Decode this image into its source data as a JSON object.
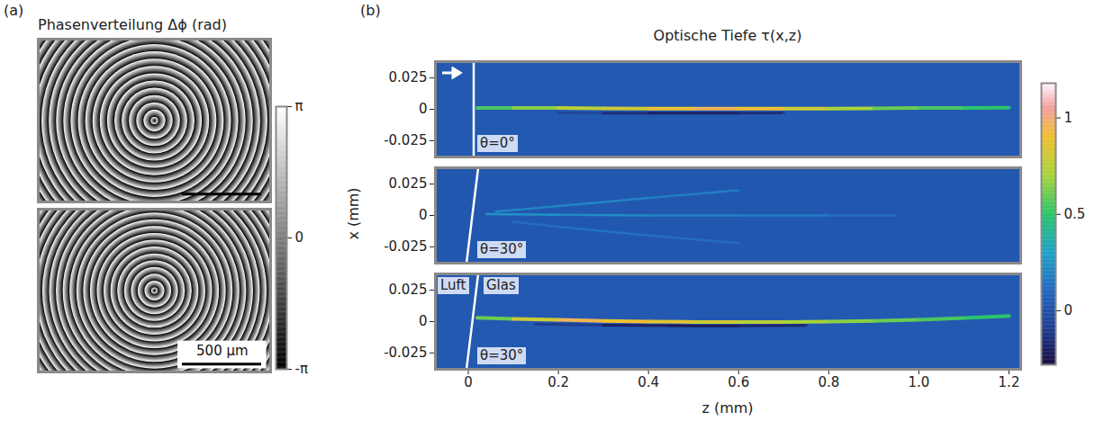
{
  "panel_labels": [
    "(a)",
    "(b)"
  ],
  "panel_a": {
    "title": "Phasenverteilung Δϕ (rad)",
    "width_um": 1466,
    "height_um": 1028,
    "images": [
      {
        "wrap_radii_um": [
          23,
          69,
          115,
          161,
          207,
          253,
          299,
          345,
          391,
          437,
          483,
          529,
          575,
          621,
          667,
          713,
          759,
          805,
          851,
          897,
          943
        ],
        "scale_bar": {
          "length_um": 500
        }
      },
      {
        "wrap_radii_um": [
          20,
          63,
          106,
          149,
          192,
          235,
          278,
          321,
          364,
          407,
          450,
          493,
          536,
          579,
          622,
          665,
          708,
          751,
          794,
          837,
          880,
          923
        ],
        "scale_bar": {
          "length_um": 500,
          "label": "500 µm"
        }
      }
    ],
    "colorbar": {
      "range": [
        -3.14159,
        3.14159
      ],
      "ticks": [
        {
          "value": 3.14159,
          "label": "π"
        },
        0,
        {
          "value": -3.14159,
          "label": "-π"
        }
      ],
      "colors": [
        "#000000",
        "#ffffff"
      ]
    }
  },
  "panel_b": {
    "title": "Optische Tiefe τ(x,z)",
    "xlabel": "z (mm)",
    "ylabel": "x (mm)",
    "colorbar": {
      "range": [
        -0.28,
        1.18
      ],
      "ticks": [
        0,
        0.5,
        1
      ],
      "stops": [
        -0.28,
        -0.1,
        0.1,
        0.3,
        0.5,
        0.7,
        0.9,
        1.05,
        1.18
      ],
      "colors": [
        "#1b0c41",
        "#1f3c8f",
        "#2466c0",
        "#1fa2c8",
        "#2cc46a",
        "#a8d43a",
        "#f0c030",
        "#f4a0a0",
        "#fff5ff"
      ]
    }
  },
  "chart_data": [
    {
      "type": "heatmap",
      "annotation": "θ=0°",
      "tick_labels": "y",
      "xlim": [
        -0.073,
        1.226
      ],
      "ylim": [
        -0.038,
        0.038
      ],
      "yticks": [
        -0.025,
        0,
        0.025
      ],
      "background_tau": 0.04,
      "interface": [
        [
          0.012,
          -0.038
        ],
        [
          0.012,
          0.038
        ]
      ],
      "beams": [
        {
          "z": [
            0.2,
            0.3,
            0.4,
            0.5,
            0.6,
            0.7
          ],
          "x": [
            -0.0028,
            -0.003,
            -0.003,
            -0.003,
            -0.003,
            -0.0028
          ],
          "tau": [
            -0.05,
            -0.15,
            -0.2,
            -0.2,
            -0.15,
            -0.05
          ]
        },
        {
          "z": [
            0.02,
            0.1,
            0.2,
            0.3,
            0.4,
            0.5,
            0.6,
            0.7,
            0.8,
            0.9,
            1.0,
            1.1,
            1.2
          ],
          "x": [
            0.001,
            0.001,
            0.001,
            0.0008,
            0.0006,
            0.0005,
            0.0005,
            0.0005,
            0.0006,
            0.0008,
            0.001,
            0.001,
            0.0012
          ],
          "tau": [
            0.55,
            0.65,
            0.75,
            0.8,
            0.88,
            0.95,
            0.9,
            0.8,
            0.7,
            0.6,
            0.55,
            0.5,
            0.4
          ]
        }
      ]
    },
    {
      "type": "heatmap",
      "annotation": "θ=30°",
      "tick_labels": "y",
      "xlim": [
        -0.073,
        1.226
      ],
      "ylim": [
        -0.038,
        0.038
      ],
      "yticks": [
        -0.025,
        0,
        0.025
      ],
      "background_tau": 0.03,
      "interface": [
        [
          -0.004,
          -0.038
        ],
        [
          0.022,
          0.038
        ]
      ],
      "beams": [
        {
          "z": [
            0.04,
            0.2,
            0.4,
            0.6,
            0.8,
            0.95
          ],
          "x": [
            0.001,
            0.0005,
            0,
            0,
            0,
            0
          ],
          "tau": [
            0.25,
            0.22,
            0.2,
            0.17,
            0.12,
            0.06
          ]
        },
        {
          "z": [
            0.06,
            0.2,
            0.4,
            0.6
          ],
          "x": [
            0.003,
            0.0075,
            0.014,
            0.02
          ],
          "tau": [
            0.2,
            0.2,
            0.18,
            0.12
          ]
        },
        {
          "z": [
            0.1,
            0.2,
            0.4,
            0.6
          ],
          "x": [
            -0.005,
            -0.009,
            -0.016,
            -0.022
          ],
          "tau": [
            0.12,
            0.14,
            0.12,
            0.08
          ]
        }
      ]
    },
    {
      "type": "heatmap",
      "annotation": "θ=30°",
      "annotations": [
        "Luft",
        "Glas"
      ],
      "xlim": [
        -0.073,
        1.226
      ],
      "ylim": [
        -0.038,
        0.038
      ],
      "yticks": [
        -0.025,
        0,
        0.025
      ],
      "xticks": [
        0,
        0.2,
        0.4,
        0.6,
        0.8,
        {
          "value": 1,
          "label": "1.0"
        },
        1.2
      ],
      "background_tau": 0.04,
      "interface": [
        [
          -0.004,
          -0.038
        ],
        [
          0.022,
          0.038
        ]
      ],
      "beams": [
        {
          "z": [
            0.15,
            0.3,
            0.45,
            0.6,
            0.75
          ],
          "x": [
            -0.002,
            -0.0028,
            -0.0033,
            -0.0034,
            -0.003
          ],
          "tau": [
            -0.1,
            -0.2,
            -0.22,
            -0.18,
            -0.1
          ]
        },
        {
          "z": [
            0.02,
            0.1,
            0.2,
            0.3,
            0.4,
            0.5,
            0.6,
            0.7,
            0.8,
            0.9,
            1.0,
            1.1,
            1.2
          ],
          "x": [
            0.003,
            0.0022,
            0.0014,
            0.0006,
            0,
            -0.0003,
            -0.0004,
            -0.0003,
            0,
            0.0006,
            0.0015,
            0.0028,
            0.0045
          ],
          "tau": [
            0.6,
            0.8,
            0.95,
            0.9,
            0.85,
            0.8,
            0.75,
            0.7,
            0.65,
            0.6,
            0.55,
            0.5,
            0.45
          ]
        }
      ]
    }
  ]
}
